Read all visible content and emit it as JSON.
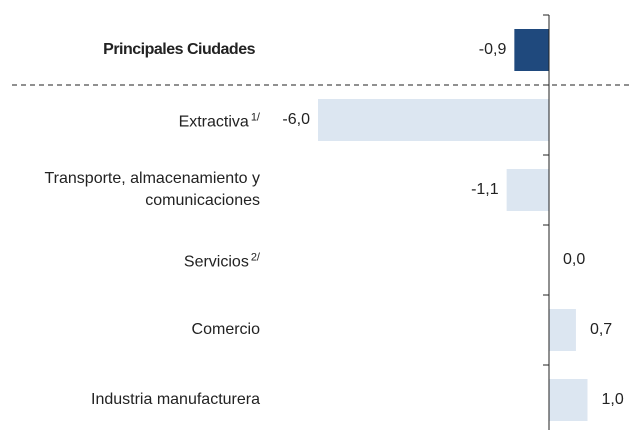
{
  "chart_data": {
    "type": "bar",
    "orientation": "horizontal",
    "categories": [
      "Principales Ciudades",
      "Extractiva",
      "Transporte, almacenamiento y comunicaciones",
      "Servicios",
      "Comercio",
      "Industria manufacturera"
    ],
    "superscripts": [
      null,
      "1/",
      null,
      "2/",
      null,
      null
    ],
    "values": [
      -0.9,
      -6.0,
      -1.1,
      0.0,
      0.7,
      1.0
    ],
    "value_labels": [
      "-0,9",
      "-6,0",
      "-1,1",
      "0,0",
      "0,7",
      "1,0"
    ],
    "colors": [
      "#1f497d",
      "#dce6f1",
      "#dce6f1",
      "#dce6f1",
      "#dce6f1",
      "#dce6f1"
    ],
    "xlim": [
      -6.0,
      1.0
    ]
  }
}
